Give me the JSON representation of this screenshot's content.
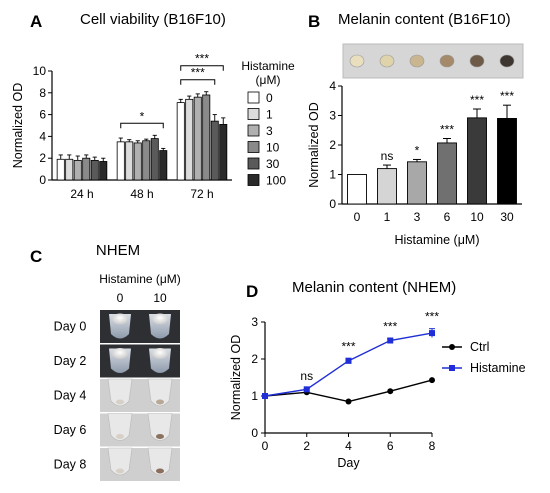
{
  "panels": {
    "A": {
      "letter": "A",
      "title": "Cell viability (B16F10)"
    },
    "B": {
      "letter": "B",
      "title": "Melanin content (B16F10)"
    },
    "C": {
      "letter": "C",
      "title": "NHEM",
      "subtitle": "Histamine (μM)",
      "columns": [
        "0",
        "10"
      ],
      "rows": [
        "Day 0",
        "Day 2",
        "Day 4",
        "Day 6",
        "Day 8"
      ]
    },
    "D": {
      "letter": "D",
      "title": "Melanin content (NHEM)"
    }
  },
  "chart_data": [
    {
      "panel": "A",
      "type": "bar",
      "title": "Cell viability (B16F10)",
      "ylabel": "Normalized OD",
      "xlabel": "",
      "ylim": [
        0,
        10
      ],
      "yticks": [
        0,
        2,
        4,
        6,
        8,
        10
      ],
      "categories": [
        "24 h",
        "48 h",
        "72 h"
      ],
      "legend_title": "Histamine\n(μM)",
      "legend_position": "right",
      "series": [
        {
          "name": "0",
          "color": "#ffffff",
          "values": [
            1.9,
            3.5,
            7.1
          ],
          "errors": [
            0.4,
            0.35,
            0.3
          ]
        },
        {
          "name": "1",
          "color": "#dcdcdc",
          "values": [
            1.9,
            3.5,
            7.4
          ],
          "errors": [
            0.4,
            0.2,
            0.3
          ]
        },
        {
          "name": "3",
          "color": "#b0b0b0",
          "values": [
            1.8,
            3.4,
            7.6
          ],
          "errors": [
            0.4,
            0.2,
            0.3
          ]
        },
        {
          "name": "10",
          "color": "#8a8a8a",
          "values": [
            2.0,
            3.6,
            7.8
          ],
          "errors": [
            0.3,
            0.15,
            0.3
          ]
        },
        {
          "name": "30",
          "color": "#5a5a5a",
          "values": [
            1.8,
            3.8,
            5.4
          ],
          "errors": [
            0.3,
            0.3,
            0.6
          ]
        },
        {
          "name": "100",
          "color": "#2a2a2a",
          "values": [
            1.7,
            2.7,
            5.1
          ],
          "errors": [
            0.3,
            0.2,
            0.6
          ]
        }
      ],
      "significance": [
        {
          "group": "48 h",
          "from": "0",
          "to": "100",
          "label": "*"
        },
        {
          "group": "72 h",
          "from": "0",
          "to": "30",
          "label": "***"
        },
        {
          "group": "72 h",
          "from": "0",
          "to": "100",
          "label": "***"
        }
      ]
    },
    {
      "panel": "B",
      "type": "bar",
      "title": "Melanin content (B16F10)",
      "ylabel": "Normalized OD",
      "xlabel": "Histamine (μM)",
      "ylim": [
        0,
        4
      ],
      "yticks": [
        0,
        1,
        2,
        3,
        4
      ],
      "categories": [
        "0",
        "1",
        "3",
        "6",
        "10",
        "30"
      ],
      "values": [
        1.0,
        1.2,
        1.43,
        2.07,
        2.92,
        2.9
      ],
      "errors": [
        0.0,
        0.12,
        0.08,
        0.15,
        0.3,
        0.45
      ],
      "colors": [
        "#ffffff",
        "#d5d5d5",
        "#a8a8a8",
        "#707070",
        "#3a3a3a",
        "#000000"
      ],
      "annotations": [
        "",
        "ns",
        "*",
        "***",
        "***",
        "***"
      ],
      "pellet_colors": [
        "#e9dfbf",
        "#dfd3ac",
        "#c9b58f",
        "#a48a6a",
        "#6e5a48",
        "#3d3530"
      ]
    },
    {
      "panel": "D",
      "type": "line",
      "title": "Melanin content (NHEM)",
      "ylabel": "Normalized OD",
      "xlabel": "Day",
      "xlim": [
        0,
        8
      ],
      "ylim": [
        0,
        3
      ],
      "xticks": [
        0,
        2,
        4,
        6,
        8
      ],
      "yticks": [
        0,
        1,
        2,
        3
      ],
      "legend_position": "right",
      "series": [
        {
          "name": "Ctrl",
          "color": "#000000",
          "marker": "circle",
          "x": [
            0,
            2,
            4,
            6,
            8
          ],
          "y": [
            1.0,
            1.1,
            0.85,
            1.13,
            1.43
          ]
        },
        {
          "name": "Histamine",
          "color": "#1f2ed6",
          "marker": "square",
          "x": [
            0,
            2,
            4,
            6,
            8
          ],
          "y": [
            1.0,
            1.18,
            1.95,
            2.5,
            2.7
          ],
          "errors": [
            0.0,
            0.03,
            0.07,
            0.05,
            0.12
          ]
        }
      ],
      "annotations": [
        {
          "x": 2,
          "label": "ns"
        },
        {
          "x": 4,
          "label": "***"
        },
        {
          "x": 6,
          "label": "***"
        },
        {
          "x": 8,
          "label": "***"
        }
      ]
    }
  ]
}
